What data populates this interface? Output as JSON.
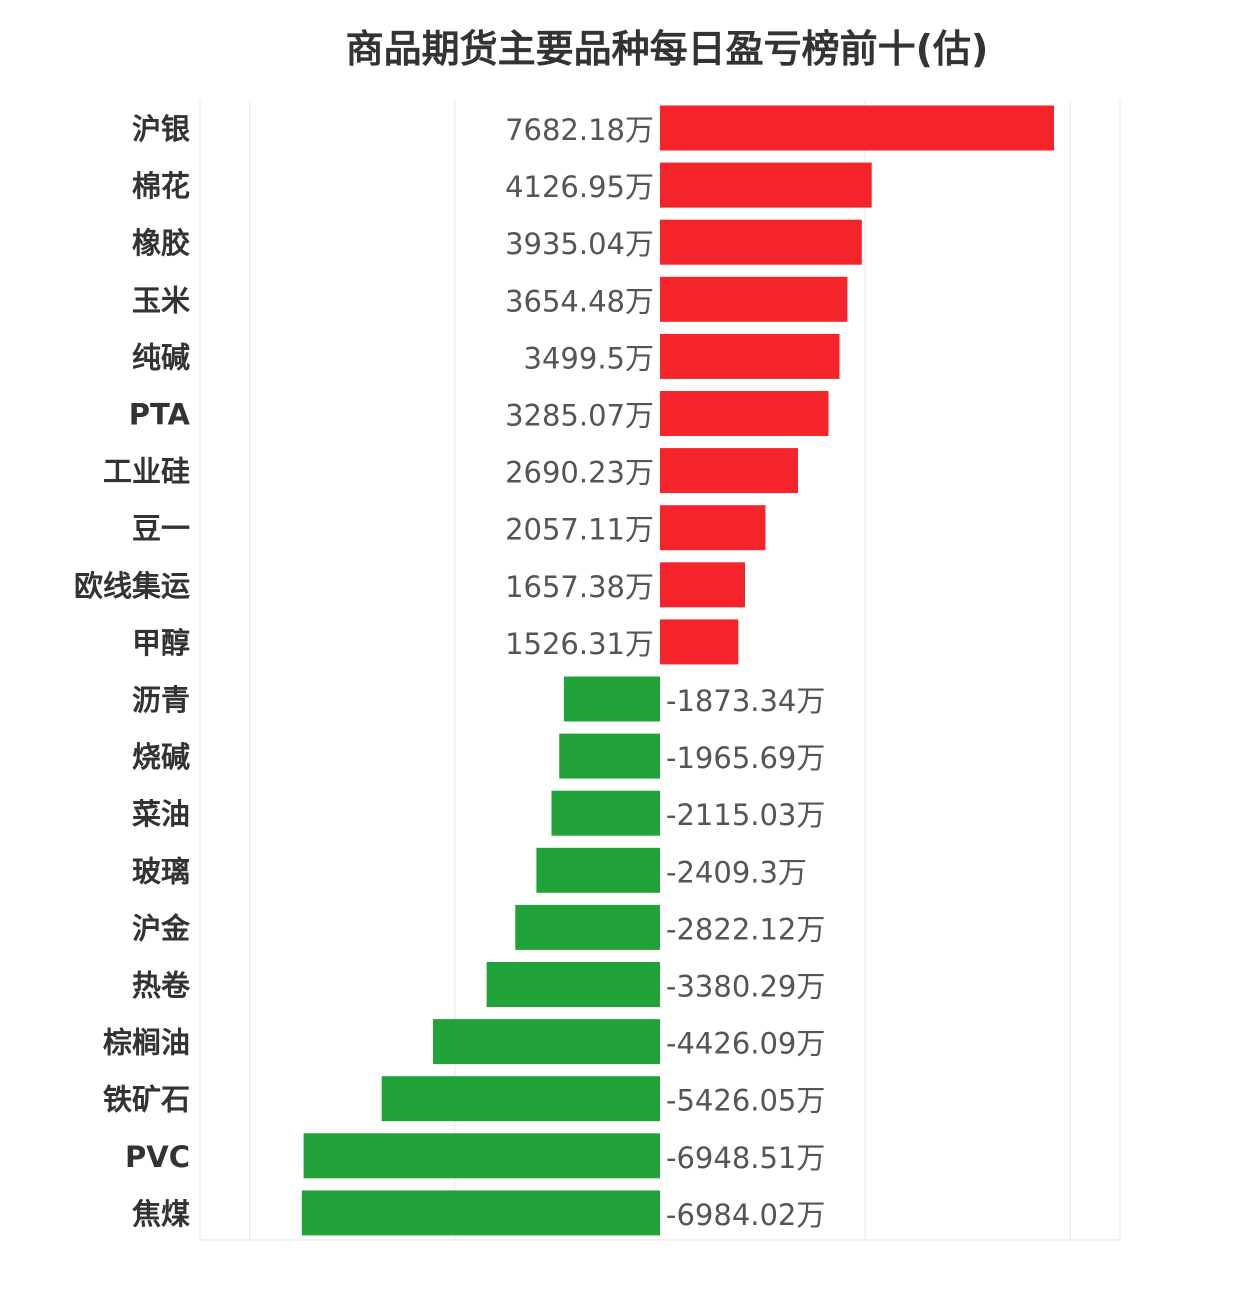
{
  "chart_data": {
    "type": "bar",
    "orientation": "horizontal",
    "title": "商品期货主要品种每日盈亏榜前十(估)",
    "unit": "万",
    "categories": [
      "沪银",
      "棉花",
      "橡胶",
      "玉米",
      "纯碱",
      "PTA",
      "工业硅",
      "豆一",
      "欧线集运",
      "甲醇",
      "沥青",
      "烧碱",
      "菜油",
      "玻璃",
      "沪金",
      "热卷",
      "棕榈油",
      "铁矿石",
      "PVC",
      "焦煤"
    ],
    "values": [
      7682.18,
      4126.95,
      3935.04,
      3654.48,
      3499.5,
      3285.07,
      2690.23,
      2057.11,
      1657.38,
      1526.31,
      -1873.34,
      -1965.69,
      -2115.03,
      -2409.3,
      -2822.12,
      -3380.29,
      -4426.09,
      -5426.05,
      -6948.51,
      -6984.02
    ],
    "value_labels": [
      "7682.18万",
      "4126.95万",
      "3935.04万",
      "3654.48万",
      "3499.5万",
      "3285.07万",
      "2690.23万",
      "2057.11万",
      "1657.38万",
      "1526.31万",
      "-1873.34万",
      "-1965.69万",
      "-2115.03万",
      "-2409.3万",
      "-2822.12万",
      "-3380.29万",
      "-4426.09万",
      "-5426.05万",
      "-6948.51万",
      "-6984.02万"
    ],
    "xlim": [
      -9000,
      9000
    ],
    "grid": true,
    "colors": {
      "positive": "#f5232a",
      "negative": "#22a33a",
      "grid": "#e6e6e6",
      "text": "#333333",
      "value_text": "#555555"
    }
  }
}
